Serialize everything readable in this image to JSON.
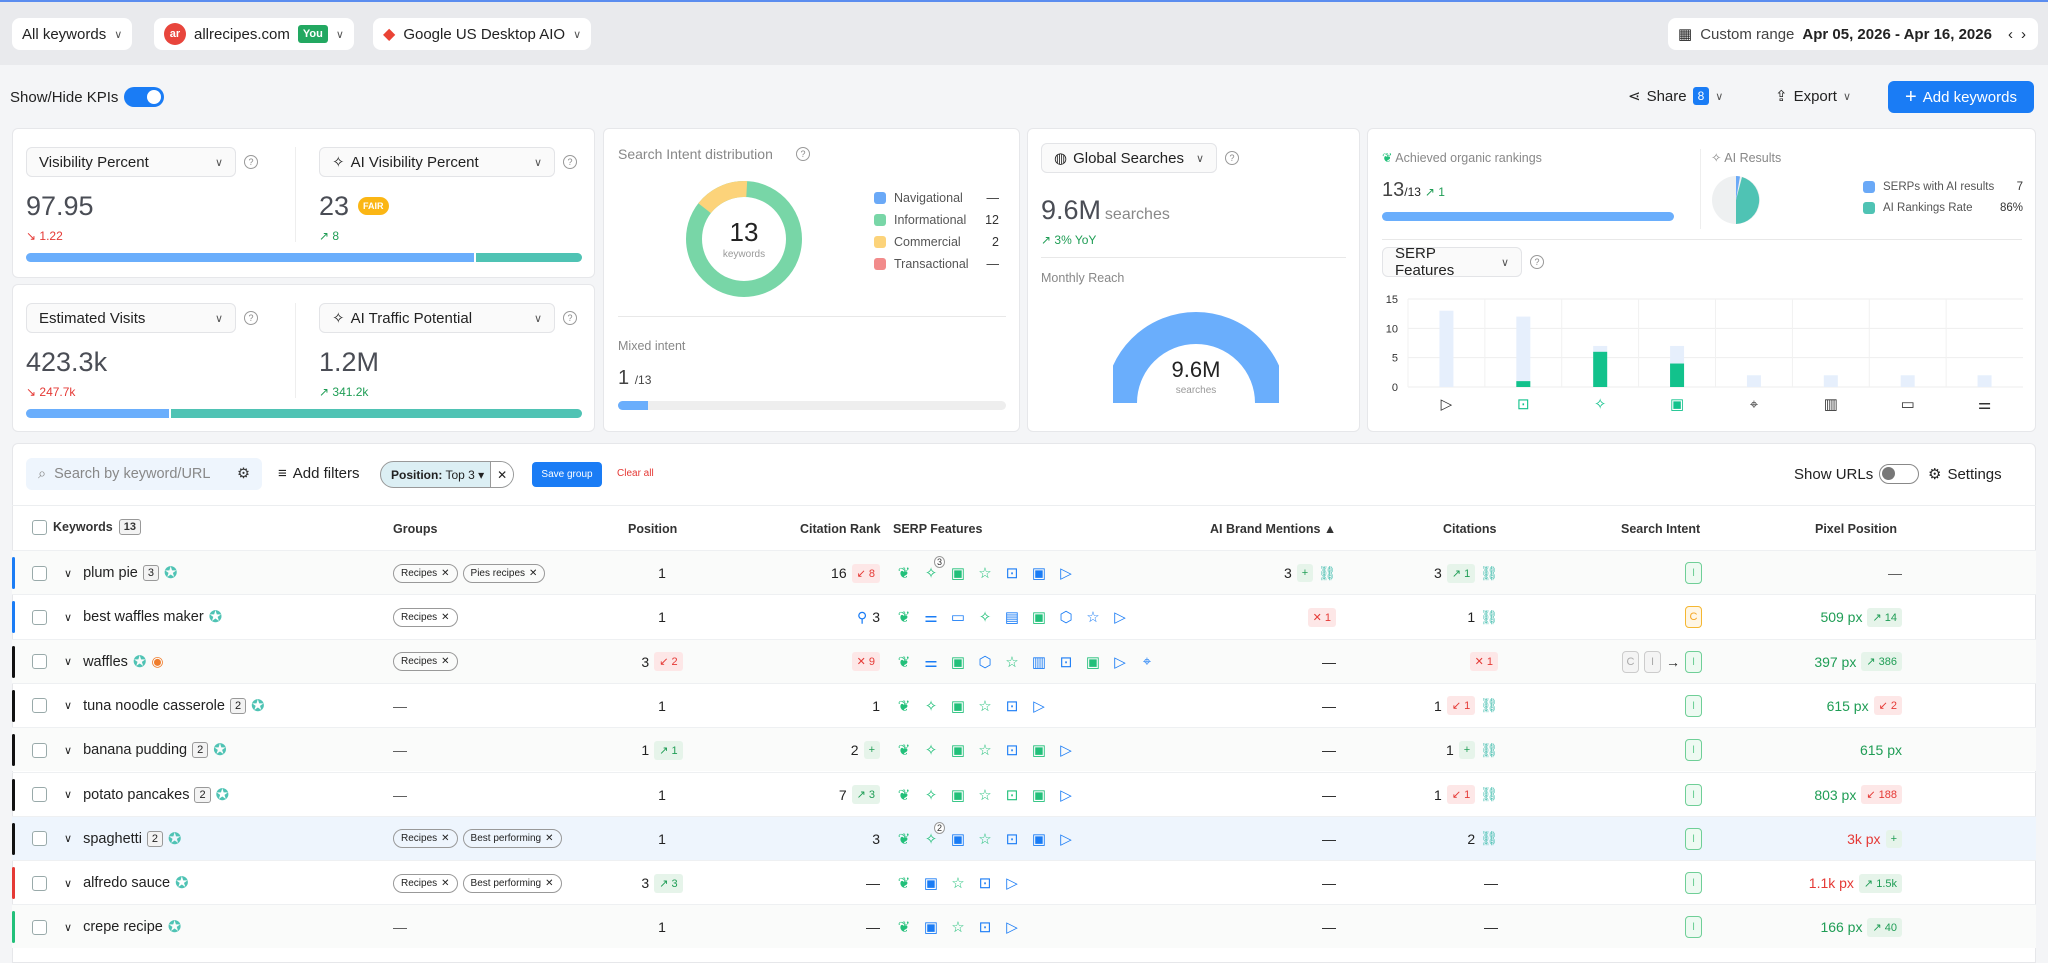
{
  "topbar": {
    "keywords_filter": "All keywords",
    "domain": "allrecipes.com",
    "domain_logo": "ar",
    "you_badge": "You",
    "engine": "Google US Desktop AIO",
    "range_label": "Custom range",
    "range_value": "Apr 05, 2026 - Apr 16, 2026"
  },
  "toolbar": {
    "kpi_toggle": "Show/Hide KPIs",
    "share": "Share",
    "share_count": "8",
    "export": "Export",
    "add_keywords": "Add keywords"
  },
  "kpis": {
    "visibility": {
      "label": "Visibility Percent",
      "value": "97.95",
      "change": "1.22",
      "bar_fraction": 0.81
    },
    "ai_visibility": {
      "label": "AI Visibility Percent",
      "value": "23",
      "badge": "FAIR",
      "change": "8"
    },
    "visits": {
      "label": "Estimated Visits",
      "value": "423.3k",
      "change": "247.7k",
      "bar_fraction": 0.26
    },
    "ai_traffic": {
      "label": "AI Traffic Potential",
      "value": "1.2M",
      "change": "341.2k"
    }
  },
  "intent": {
    "title": "Search Intent distribution",
    "total": "13",
    "total_label": "keywords",
    "legend": [
      {
        "label": "Navigational",
        "value": "—",
        "color": "#6aa9f7"
      },
      {
        "label": "Informational",
        "value": "12",
        "color": "#78d6a7"
      },
      {
        "label": "Commercial",
        "value": "2",
        "color": "#fcd37a"
      },
      {
        "label": "Transactional",
        "value": "—",
        "color": "#f28b8b"
      }
    ],
    "mixed_label": "Mixed intent",
    "mixed_value": "1",
    "mixed_total": "/13",
    "mixed_fraction": 0.077
  },
  "global": {
    "label": "Global Searches",
    "value": "9.6M",
    "unit": "searches",
    "yoy": "3% YoY",
    "reach_label": "Monthly Reach",
    "gauge_value": "9.6M",
    "gauge_unit": "searches"
  },
  "rankings": {
    "title": "Achieved organic rankings",
    "value": "13",
    "total": "/13",
    "change": "1",
    "fraction": 1.0,
    "ai_title": "AI Results",
    "ai_legend": [
      {
        "label": "SERPs with AI results",
        "value": "7",
        "color": "#6aa9f7"
      },
      {
        "label": "AI Rankings Rate",
        "value": "86%",
        "color": "#4fc3b4"
      }
    ],
    "serp_select": "SERP Features"
  },
  "chart_data": {
    "type": "bar",
    "title": "SERP Features",
    "categories": [
      "video",
      "discussions",
      "ai-overview",
      "images",
      "local-pack",
      "knowledge",
      "comments",
      "filters"
    ],
    "series": [
      {
        "name": "Total",
        "values": [
          13,
          12,
          7,
          7,
          2,
          2,
          2,
          2
        ],
        "color": "#e6effc"
      },
      {
        "name": "Owned",
        "values": [
          0,
          1,
          6,
          4,
          0,
          0,
          0,
          0
        ],
        "color": "#12c28c"
      }
    ],
    "yticks": [
      "0",
      "5",
      "10",
      "15"
    ],
    "ylim": [
      0,
      15
    ]
  },
  "filters": {
    "search_placeholder": "Search by keyword/URL",
    "add_filters": "Add filters",
    "chip_key": "Position:",
    "chip_value": "Top 3",
    "save_group": "Save group",
    "clear_all": "Clear all",
    "show_urls": "Show URLs",
    "settings": "Settings"
  },
  "table": {
    "headers": {
      "keywords": "Keywords",
      "keywords_count": "13",
      "groups": "Groups",
      "position": "Position",
      "citation_rank": "Citation Rank",
      "serp": "SERP Features",
      "brand": "AI Brand Mentions ▲",
      "citations": "Citations",
      "intent": "Search Intent",
      "pixel": "Pixel Position"
    },
    "rows": [
      {
        "kw": "plum pie",
        "count": "3",
        "bar": "#1a7cf5",
        "groups": [
          "Recipes",
          "Pies recipes"
        ],
        "pos": "1",
        "cit": "16",
        "cit_chg": [
          "r",
          "↙ 8"
        ],
        "serp": [
          [
            "leaf",
            "g"
          ],
          [
            "ai",
            "g",
            "3"
          ],
          [
            "img",
            "g"
          ],
          [
            "star",
            "g"
          ],
          [
            "chat",
            "b"
          ],
          [
            "img",
            "b"
          ],
          [
            "video",
            "b"
          ]
        ],
        "brand": "3",
        "brand_chg": [
          "g",
          "+"
        ],
        "brand_link": true,
        "cits": "3",
        "cits_chg": [
          "g",
          "↗ 1"
        ],
        "cits_link": true,
        "intent": [
          "I"
        ],
        "px": "—",
        "px_color": "#555"
      },
      {
        "kw": "best waffles maker",
        "bar": "#1a7cf5",
        "groups": [
          "Recipes"
        ],
        "pos": "1",
        "cit": "3",
        "cit_pin": true,
        "serp": [
          [
            "leaf",
            "g"
          ],
          [
            "sliders",
            "b"
          ],
          [
            "comment",
            "b"
          ],
          [
            "ai",
            "g"
          ],
          [
            "kp",
            "b"
          ],
          [
            "img",
            "g"
          ],
          [
            "cube",
            "b"
          ],
          [
            "star",
            "b"
          ],
          [
            "video",
            "b"
          ]
        ],
        "brand_chg": [
          "r",
          "✕ 1"
        ],
        "cits": "1",
        "cits_link": true,
        "intent": [
          "C"
        ],
        "px": "509 px",
        "px_color": "#1f9d55",
        "px_chg": [
          "g",
          "↗ 14"
        ]
      },
      {
        "kw": "waffles",
        "bar": "#111",
        "extra": true,
        "groups": [
          "Recipes"
        ],
        "pos": "3",
        "pos_chg": [
          "r",
          "↙ 2"
        ],
        "cit_chg": [
          "r",
          "✕ 9"
        ],
        "serp": [
          [
            "leaf",
            "g"
          ],
          [
            "sliders",
            "b"
          ],
          [
            "img",
            "g"
          ],
          [
            "cube",
            "b"
          ],
          [
            "star",
            "g"
          ],
          [
            "book",
            "b"
          ],
          [
            "chat",
            "b"
          ],
          [
            "img",
            "g"
          ],
          [
            "video",
            "b"
          ],
          [
            "pin",
            "b"
          ]
        ],
        "brand": "—",
        "cits_chg": [
          "r",
          "✕ 1"
        ],
        "intent": [
          "C",
          "I",
          "→",
          "I"
        ],
        "px": "397 px",
        "px_color": "#1f9d55",
        "px_chg": [
          "g",
          "↗ 386"
        ]
      },
      {
        "kw": "tuna noodle casserole",
        "count": "2",
        "bar": "#111",
        "groups": [],
        "pos": "1",
        "cit": "1",
        "serp": [
          [
            "leaf",
            "g"
          ],
          [
            "ai",
            "g"
          ],
          [
            "img",
            "g"
          ],
          [
            "star",
            "g"
          ],
          [
            "chat",
            "b"
          ],
          [
            "video",
            "b"
          ]
        ],
        "brand": "—",
        "cits": "1",
        "cits_chg": [
          "r",
          "↙ 1"
        ],
        "cits_link": true,
        "intent": [
          "I"
        ],
        "px": "615 px",
        "px_color": "#1f9d55",
        "px_chg": [
          "r",
          "↙ 2"
        ]
      },
      {
        "kw": "banana pudding",
        "count": "2",
        "bar": "#111",
        "groups": [],
        "pos": "1",
        "pos_chg": [
          "g",
          "↗ 1"
        ],
        "cit": "2",
        "cit_chg": [
          "g",
          "+"
        ],
        "serp": [
          [
            "leaf",
            "g"
          ],
          [
            "ai",
            "g"
          ],
          [
            "img",
            "g"
          ],
          [
            "star",
            "g"
          ],
          [
            "chat",
            "b"
          ],
          [
            "img",
            "g"
          ],
          [
            "video",
            "b"
          ]
        ],
        "brand": "—",
        "cits": "1",
        "cits_chg": [
          "g",
          "+"
        ],
        "cits_link": true,
        "intent": [
          "I"
        ],
        "px": "615 px",
        "px_color": "#1f9d55"
      },
      {
        "kw": "potato pancakes",
        "count": "2",
        "bar": "#111",
        "groups": [],
        "pos": "1",
        "cit": "7",
        "cit_chg": [
          "g",
          "↗ 3"
        ],
        "serp": [
          [
            "leaf",
            "g"
          ],
          [
            "ai",
            "g"
          ],
          [
            "img",
            "g"
          ],
          [
            "star",
            "g"
          ],
          [
            "chat",
            "g"
          ],
          [
            "img",
            "g"
          ],
          [
            "video",
            "b"
          ]
        ],
        "brand": "—",
        "cits": "1",
        "cits_chg": [
          "r",
          "↙ 1"
        ],
        "cits_link": true,
        "intent": [
          "I"
        ],
        "px": "803 px",
        "px_color": "#1f9d55",
        "px_chg": [
          "r",
          "↙ 188"
        ]
      },
      {
        "kw": "spaghetti",
        "count": "2",
        "bar": "#111",
        "hl": true,
        "groups": [
          "Recipes",
          "Best performing"
        ],
        "pos": "1",
        "cit": "3",
        "serp": [
          [
            "leaf",
            "g"
          ],
          [
            "ai",
            "g",
            "2"
          ],
          [
            "img",
            "b"
          ],
          [
            "star",
            "g"
          ],
          [
            "chat",
            "b"
          ],
          [
            "img",
            "b"
          ],
          [
            "video",
            "b"
          ]
        ],
        "brand": "—",
        "cits": "2",
        "cits_link": true,
        "intent": [
          "I"
        ],
        "px": "3k px",
        "px_color": "#e53935",
        "px_chg": [
          "g",
          "+"
        ]
      },
      {
        "kw": "alfredo sauce",
        "bar": "#e53935",
        "groups": [
          "Recipes",
          "Best performing"
        ],
        "pos": "3",
        "pos_chg": [
          "g",
          "↗ 3"
        ],
        "cit": "—",
        "serp": [
          [
            "leaf",
            "g"
          ],
          [
            "img",
            "b"
          ],
          [
            "star",
            "g"
          ],
          [
            "chat",
            "b"
          ],
          [
            "video",
            "b"
          ]
        ],
        "brand": "—",
        "cits": "—",
        "intent": [
          "I"
        ],
        "px": "1.1k px",
        "px_color": "#e53935",
        "px_chg": [
          "g",
          "↗ 1.5k"
        ]
      },
      {
        "kw": "crepe recipe",
        "bar": "#22c07a",
        "groups": [],
        "pos": "1",
        "cit": "—",
        "serp": [
          [
            "leaf",
            "g"
          ],
          [
            "img",
            "b"
          ],
          [
            "star",
            "g"
          ],
          [
            "chat",
            "b"
          ],
          [
            "video",
            "b"
          ]
        ],
        "brand": "—",
        "cits": "—",
        "intent": [
          "I"
        ],
        "px": "166 px",
        "px_color": "#1f9d55",
        "px_chg": [
          "g",
          "↗ 40"
        ]
      }
    ]
  }
}
